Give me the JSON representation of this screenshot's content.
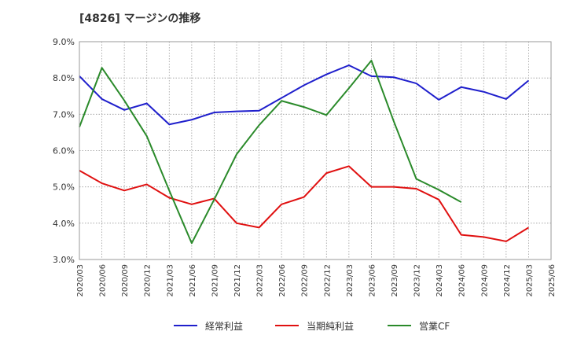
{
  "chart_data": {
    "type": "line",
    "title": "[4826]  マージンの推移",
    "xlabel": "",
    "ylabel": "",
    "ylim": [
      3.0,
      9.0
    ],
    "y_ticks": [
      "3.0%",
      "4.0%",
      "5.0%",
      "6.0%",
      "7.0%",
      "8.0%",
      "9.0%"
    ],
    "categories": [
      "2020/03",
      "2020/06",
      "2020/09",
      "2020/12",
      "2021/03",
      "2021/06",
      "2021/09",
      "2021/12",
      "2022/03",
      "2022/06",
      "2022/09",
      "2022/12",
      "2023/03",
      "2023/06",
      "2023/09",
      "2023/12",
      "2024/03",
      "2024/06",
      "2024/09",
      "2024/12",
      "2025/03",
      "2025/06"
    ],
    "grid": true,
    "legend_position": "bottom",
    "series": [
      {
        "name": "経常利益",
        "color": "#1f1fcc",
        "values": [
          8.05,
          7.42,
          7.12,
          7.3,
          6.72,
          6.85,
          7.05,
          7.08,
          7.1,
          7.45,
          7.8,
          8.1,
          8.35,
          8.05,
          8.02,
          7.85,
          7.4,
          7.75,
          7.62,
          7.42,
          7.93,
          null
        ]
      },
      {
        "name": "当期純利益",
        "color": "#e01010",
        "values": [
          5.45,
          5.1,
          4.9,
          5.07,
          4.7,
          4.52,
          4.68,
          4.0,
          3.88,
          4.52,
          4.72,
          5.38,
          5.57,
          5.0,
          5.0,
          4.95,
          4.65,
          3.68,
          3.62,
          3.5,
          3.88,
          null
        ]
      },
      {
        "name": "営業CF",
        "color": "#2a8a2a",
        "values": [
          6.65,
          8.28,
          7.38,
          6.4,
          4.9,
          3.45,
          4.65,
          5.9,
          6.7,
          7.37,
          7.2,
          6.98,
          7.72,
          8.48,
          6.8,
          5.22,
          4.92,
          4.58,
          null,
          null,
          null,
          null
        ]
      }
    ]
  }
}
